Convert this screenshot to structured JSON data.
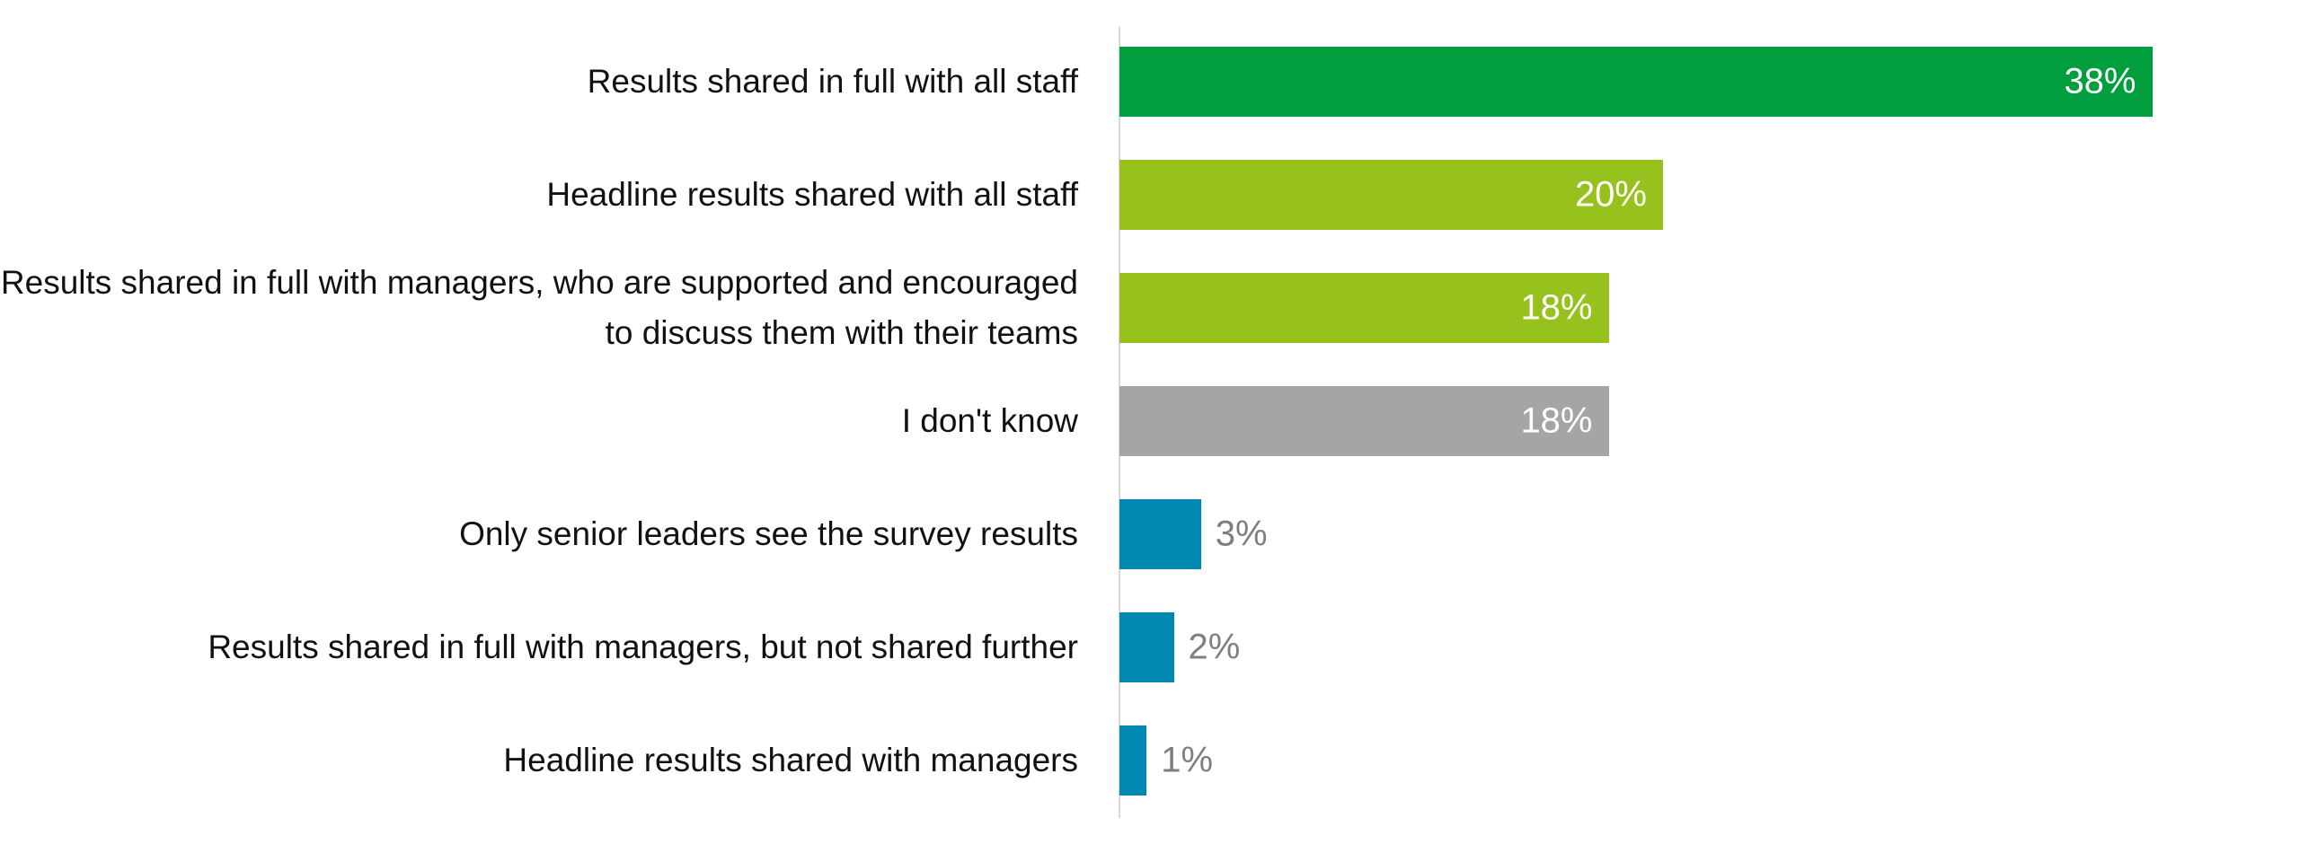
{
  "chart_data": {
    "type": "hbar",
    "categories": [
      "Results shared in full with all staff",
      "Headline results shared with all staff",
      "Results shared in full with managers, who are supported and encouraged to discuss them with their teams",
      "I don't know",
      "Only senior leaders see the survey results",
      "Results shared in full with managers, but not shared further",
      "Headline results shared with managers"
    ],
    "values": [
      38,
      20,
      18,
      18,
      3,
      2,
      1
    ],
    "value_labels": [
      "38%",
      "20%",
      "18%",
      "18%",
      "3%",
      "2%",
      "1%"
    ],
    "colors": [
      "#009e3d",
      "#97c21e",
      "#97c21e",
      "#a5a5a5",
      "#0088b0",
      "#0088b0",
      "#0088b0"
    ]
  }
}
